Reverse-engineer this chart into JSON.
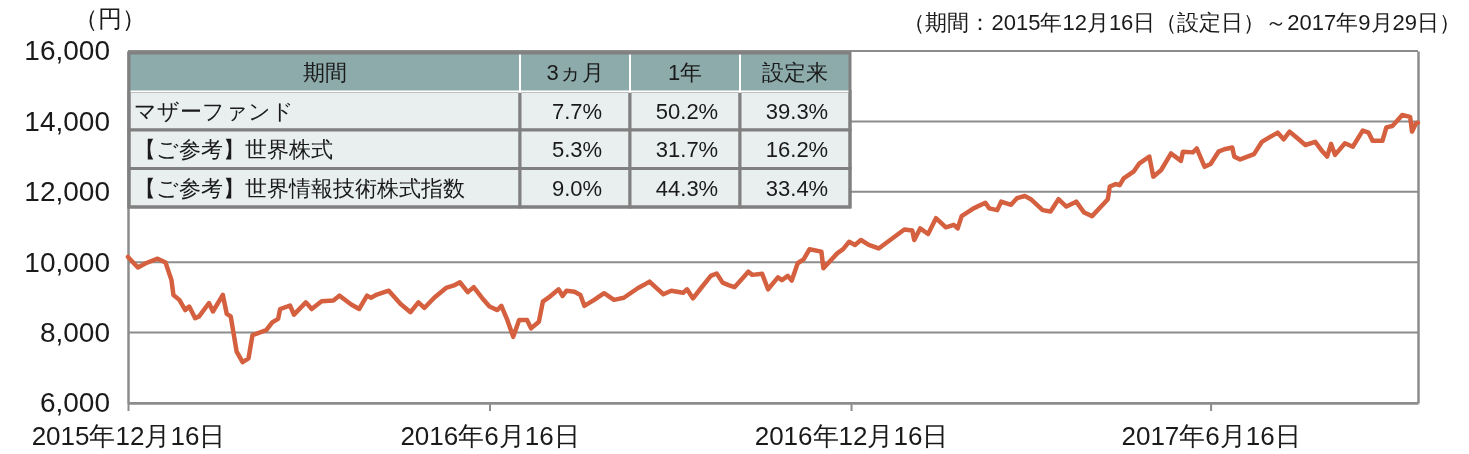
{
  "chart_data": [
    {
      "type": "line",
      "ylabel": "（円）",
      "annotations": [
        "（期間：2015年12月16日（設定日）～2017年9月29日）"
      ],
      "xlim": [
        "2015-12-16",
        "2017-09-29"
      ],
      "xticks": [
        {
          "value": "2015-12-16",
          "label": "2015年12月16日"
        },
        {
          "value": "2016-06-16",
          "label": "2016年6月16日"
        },
        {
          "value": "2016-12-16",
          "label": "2016年12月16日"
        },
        {
          "value": "2017-06-16",
          "label": "2017年6月16日"
        }
      ],
      "ylim": [
        6000,
        16000
      ],
      "yticks": [
        {
          "value": 6000,
          "label": "6,000"
        },
        {
          "value": 8000,
          "label": "8,000"
        },
        {
          "value": 10000,
          "label": "10,000"
        },
        {
          "value": 12000,
          "label": "12,000"
        },
        {
          "value": 14000,
          "label": "14,000"
        },
        {
          "value": 16000,
          "label": "16,000"
        }
      ],
      "grid": "y",
      "color": "#d5603f",
      "x": [
        "2015-12-16",
        "2015-12-21",
        "2015-12-25",
        "2015-12-31",
        "2016-01-04",
        "2016-01-07",
        "2016-01-08",
        "2016-01-11",
        "2016-01-14",
        "2016-01-16",
        "2016-01-19",
        "2016-01-21",
        "2016-01-26",
        "2016-01-28",
        "2016-02-02",
        "2016-02-04",
        "2016-02-06",
        "2016-02-09",
        "2016-02-12",
        "2016-02-15",
        "2016-02-17",
        "2016-02-24",
        "2016-02-27",
        "2016-03-01",
        "2016-03-02",
        "2016-03-07",
        "2016-03-09",
        "2016-03-15",
        "2016-03-18",
        "2016-03-23",
        "2016-03-29",
        "2016-04-01",
        "2016-04-07",
        "2016-04-11",
        "2016-04-15",
        "2016-04-17",
        "2016-04-20",
        "2016-04-26",
        "2016-05-02",
        "2016-05-07",
        "2016-05-11",
        "2016-05-14",
        "2016-05-19",
        "2016-05-25",
        "2016-05-29",
        "2016-06-01",
        "2016-06-05",
        "2016-06-08",
        "2016-06-13",
        "2016-06-16",
        "2016-06-20",
        "2016-06-22",
        "2016-06-25",
        "2016-06-28",
        "2016-07-01",
        "2016-07-05",
        "2016-07-07",
        "2016-07-11",
        "2016-07-13",
        "2016-07-16",
        "2016-07-21",
        "2016-07-23",
        "2016-07-25",
        "2016-07-29",
        "2016-08-01",
        "2016-08-03",
        "2016-08-08",
        "2016-08-13",
        "2016-08-18",
        "2016-08-23",
        "2016-08-30",
        "2016-09-02",
        "2016-09-05",
        "2016-09-08",
        "2016-09-12",
        "2016-09-16",
        "2016-09-22",
        "2016-09-24",
        "2016-09-27",
        "2016-10-01",
        "2016-10-06",
        "2016-10-09",
        "2016-10-12",
        "2016-10-15",
        "2016-10-18",
        "2016-10-22",
        "2016-10-25",
        "2016-10-27",
        "2016-11-01",
        "2016-11-04",
        "2016-11-09",
        "2016-11-11",
        "2016-11-14",
        "2016-11-16",
        "2016-11-19",
        "2016-11-22",
        "2016-11-25",
        "2016-12-01",
        "2016-12-02",
        "2016-12-09",
        "2016-12-12",
        "2016-12-15",
        "2016-12-18",
        "2016-12-21",
        "2016-12-25",
        "2016-12-30",
        "2017-01-06",
        "2017-01-12",
        "2017-01-16",
        "2017-01-17",
        "2017-01-20",
        "2017-01-24",
        "2017-01-28",
        "2017-02-02",
        "2017-02-06",
        "2017-02-08",
        "2017-02-10",
        "2017-02-16",
        "2017-02-22",
        "2017-02-24",
        "2017-02-28",
        "2017-03-02",
        "2017-03-07",
        "2017-03-10",
        "2017-03-14",
        "2017-03-17",
        "2017-03-23",
        "2017-03-27",
        "2017-03-31",
        "2017-04-04",
        "2017-04-09",
        "2017-04-13",
        "2017-04-17",
        "2017-04-23",
        "2017-04-25",
        "2017-04-26",
        "2017-04-29",
        "2017-05-01",
        "2017-05-03",
        "2017-05-08",
        "2017-05-11",
        "2017-05-16",
        "2017-05-18",
        "2017-05-22",
        "2017-05-27",
        "2017-06-01",
        "2017-06-02",
        "2017-06-07",
        "2017-06-09",
        "2017-06-13",
        "2017-06-16",
        "2017-06-20",
        "2017-06-23",
        "2017-06-27",
        "2017-06-28",
        "2017-07-01",
        "2017-07-08",
        "2017-07-12",
        "2017-07-14",
        "2017-07-20",
        "2017-07-23",
        "2017-07-26",
        "2017-07-30",
        "2017-08-03",
        "2017-08-08",
        "2017-08-11",
        "2017-08-14",
        "2017-08-16",
        "2017-08-18",
        "2017-08-23",
        "2017-08-27",
        "2017-09-01",
        "2017-09-04",
        "2017-09-06",
        "2017-09-11",
        "2017-09-13",
        "2017-09-16",
        "2017-09-18",
        "2017-09-21",
        "2017-09-25",
        "2017-09-26",
        "2017-09-28",
        "2017-09-29"
      ],
      "values": [
        10150,
        9850,
        9970,
        10100,
        9990,
        9490,
        9070,
        8930,
        8640,
        8740,
        8410,
        8460,
        8840,
        8600,
        9070,
        8530,
        8460,
        7460,
        7160,
        7270,
        7930,
        8070,
        8290,
        8390,
        8670,
        8770,
        8510,
        8860,
        8670,
        8890,
        8910,
        9050,
        8800,
        8670,
        9050,
        8990,
        9080,
        9190,
        8810,
        8580,
        8860,
        8700,
        8990,
        9270,
        9340,
        9430,
        9150,
        9290,
        8930,
        8740,
        8640,
        8760,
        8360,
        7880,
        8360,
        8360,
        8120,
        8310,
        8880,
        9000,
        9230,
        9040,
        9190,
        9160,
        9070,
        8760,
        8930,
        9120,
        8930,
        8990,
        9260,
        9350,
        9450,
        9290,
        9090,
        9190,
        9130,
        9230,
        8970,
        9260,
        9610,
        9680,
        9420,
        9350,
        9290,
        9540,
        9730,
        9640,
        9670,
        9230,
        9570,
        9490,
        9610,
        9480,
        9970,
        10080,
        10370,
        10300,
        9830,
        10250,
        10370,
        10580,
        10490,
        10630,
        10490,
        10390,
        10680,
        10930,
        10900,
        10630,
        10960,
        10800,
        11250,
        10990,
        11060,
        10960,
        11310,
        11530,
        11690,
        11530,
        11480,
        11720,
        11630,
        11820,
        11880,
        11790,
        11480,
        11440,
        11790,
        11580,
        11720,
        11410,
        11310,
        11670,
        11790,
        12150,
        12220,
        12190,
        12380,
        12570,
        12810,
        13000,
        12430,
        12620,
        13090,
        12880,
        13140,
        13120,
        13230,
        12710,
        12790,
        13140,
        13210,
        13260,
        13000,
        12920,
        13070,
        13420,
        13490,
        13680,
        13490,
        13710,
        13520,
        13330,
        13420,
        13190,
        13000,
        13360,
        13050,
        13380,
        13280,
        13740,
        13680,
        13450,
        13450,
        13830,
        13870,
        13990,
        14180,
        14130,
        13710,
        13950,
        13960
      ]
    },
    {
      "type": "other",
      "xlabel": "期間",
      "categories": [
        "3ヵ月",
        "1年",
        "設定来"
      ],
      "y_categories": [
        "マザーファンド",
        "【ご参考】世界株式",
        "【ご参考】世界情報技術株式指数"
      ],
      "cell_labels": [
        [
          "7.7%",
          "50.2%",
          "39.3%"
        ],
        [
          "5.3%",
          "31.7%",
          "16.2%"
        ],
        [
          "9.0%",
          "44.3%",
          "33.4%"
        ]
      ]
    }
  ]
}
